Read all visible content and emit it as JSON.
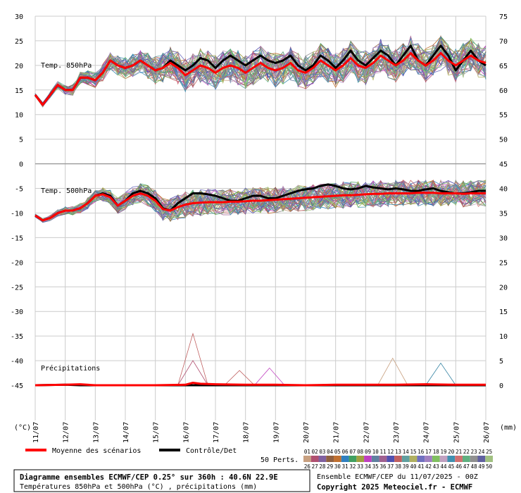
{
  "chart_data": {
    "type": "line",
    "title": "Diagramme ensembles ECMWF/CEP 0.25° sur 360h : 40.6N 22.9E",
    "subtitle": "Températures 850hPa et 500hPa (°C) , précipitations (mm)",
    "run_info": "Ensemble ECMWF/CEP du 11/07/2025 - 00Z",
    "copyright": "Copyright 2025 Meteociel.fr - ECMWF",
    "left_axis_unit": "(°C)",
    "right_axis_unit": "(mm)",
    "left_ticks": [
      "30",
      "25",
      "20",
      "15",
      "10",
      "5",
      "0",
      "-5",
      "-10",
      "-15",
      "-20",
      "-25",
      "-30",
      "-35",
      "-40",
      "-45"
    ],
    "right_ticks": [
      "75",
      "70",
      "65",
      "60",
      "55",
      "50",
      "45",
      "40",
      "35",
      "30",
      "25",
      "20",
      "15",
      "10",
      "5",
      "0"
    ],
    "x_labels": [
      "11/07",
      "12/07",
      "13/07",
      "14/07",
      "15/07",
      "16/07",
      "17/07",
      "18/07",
      "19/07",
      "20/07",
      "21/07",
      "22/07",
      "23/07",
      "24/07",
      "25/07",
      "26/07"
    ],
    "panel_labels": {
      "t850": "Temp. 850hPa",
      "t500": "Temp. 500hPa",
      "precip": "Précipitations"
    },
    "legend": {
      "mean": "Moyenne des scénarios",
      "control": "Contrôle/Det",
      "perts": "50 Perts."
    },
    "members_top": [
      "01",
      "02",
      "03",
      "04",
      "05",
      "06",
      "07",
      "08",
      "09",
      "10",
      "11",
      "12",
      "13",
      "14",
      "15",
      "16",
      "17",
      "18",
      "19",
      "20",
      "21",
      "22",
      "23",
      "24",
      "25"
    ],
    "members_bottom": [
      "26",
      "27",
      "28",
      "29",
      "30",
      "31",
      "32",
      "33",
      "34",
      "35",
      "36",
      "37",
      "38",
      "39",
      "40",
      "41",
      "42",
      "43",
      "44",
      "45",
      "46",
      "47",
      "48",
      "49",
      "50"
    ],
    "series": [
      {
        "name": "Contrôle/Det",
        "group": "t850",
        "color": "#000000",
        "x": [
          0,
          0.25,
          0.5,
          0.75,
          1,
          1.25,
          1.5,
          1.75,
          2,
          2.25,
          2.5,
          2.75,
          3,
          3.25,
          3.5,
          3.75,
          4,
          4.25,
          4.5,
          4.75,
          5,
          5.25,
          5.5,
          5.75,
          6,
          6.25,
          6.5,
          6.75,
          7,
          7.25,
          7.5,
          7.75,
          8,
          8.25,
          8.5,
          8.75,
          9,
          9.25,
          9.5,
          9.75,
          10,
          10.25,
          10.5,
          10.75,
          11,
          11.25,
          11.5,
          11.75,
          12,
          12.25,
          12.5,
          12.75,
          13,
          13.25,
          13.5,
          13.75,
          14,
          14.25,
          14.5,
          14.75,
          15
        ],
        "values": [
          14,
          12,
          14,
          16,
          15,
          15,
          17.5,
          17.5,
          17,
          18.5,
          21,
          20,
          19.5,
          20,
          21,
          20,
          19,
          19.5,
          21,
          20,
          19,
          20,
          21.5,
          21,
          19.5,
          21,
          22,
          21,
          20,
          21,
          22,
          21,
          20.5,
          21,
          22,
          20,
          19,
          20,
          22,
          21,
          19.5,
          21,
          23,
          21,
          20,
          21.5,
          23,
          22,
          20,
          22,
          24,
          21,
          20,
          22,
          24,
          22,
          19,
          21,
          23,
          21,
          20
        ]
      },
      {
        "name": "Moyenne des scénarios",
        "group": "t850",
        "color": "#ff0000",
        "x": [
          0,
          0.25,
          0.5,
          0.75,
          1,
          1.25,
          1.5,
          1.75,
          2,
          2.25,
          2.5,
          2.75,
          3,
          3.25,
          3.5,
          3.75,
          4,
          4.25,
          4.5,
          4.75,
          5,
          5.25,
          5.5,
          5.75,
          6,
          6.25,
          6.5,
          6.75,
          7,
          7.25,
          7.5,
          7.75,
          8,
          8.25,
          8.5,
          8.75,
          9,
          9.25,
          9.5,
          9.75,
          10,
          10.25,
          10.5,
          10.75,
          11,
          11.25,
          11.5,
          11.75,
          12,
          12.25,
          12.5,
          12.75,
          13,
          13.25,
          13.5,
          13.75,
          14,
          14.25,
          14.5,
          14.75,
          15
        ],
        "values": [
          14,
          12,
          14,
          16,
          15,
          15,
          17.5,
          17.5,
          17,
          18.5,
          21,
          20,
          19.5,
          20,
          21,
          20,
          19,
          19.5,
          20.5,
          19.5,
          18,
          19,
          20,
          19.5,
          18.5,
          19.5,
          20,
          19.5,
          18.5,
          19.5,
          20.5,
          19.5,
          19,
          19.5,
          20.5,
          19,
          18.5,
          19.5,
          21,
          20,
          19,
          20,
          21.5,
          20,
          19.5,
          20.5,
          22,
          21,
          20,
          21,
          22.5,
          21,
          20,
          21,
          22.5,
          21,
          20,
          21,
          22,
          21,
          20.5
        ]
      },
      {
        "name": "Contrôle/Det",
        "group": "t500",
        "color": "#000000",
        "x": [
          0,
          0.25,
          0.5,
          0.75,
          1,
          1.25,
          1.5,
          1.75,
          2,
          2.25,
          2.5,
          2.75,
          3,
          3.25,
          3.5,
          3.75,
          4,
          4.25,
          4.5,
          4.75,
          5,
          5.25,
          5.5,
          5.75,
          6,
          6.25,
          6.5,
          6.75,
          7,
          7.25,
          7.5,
          7.75,
          8,
          8.25,
          8.5,
          8.75,
          9,
          9.25,
          9.5,
          9.75,
          10,
          10.25,
          10.5,
          10.75,
          11,
          11.25,
          11.5,
          11.75,
          12,
          12.25,
          12.5,
          12.75,
          13,
          13.25,
          13.5,
          13.75,
          14,
          14.25,
          14.5,
          14.75,
          15
        ],
        "values": [
          -10.5,
          -11.5,
          -11,
          -10,
          -9.5,
          -9.5,
          -9,
          -8,
          -6.5,
          -6,
          -6.5,
          -8.5,
          -7.5,
          -6,
          -5.5,
          -6,
          -7,
          -9,
          -9.5,
          -8,
          -7,
          -6,
          -6,
          -6.2,
          -6.5,
          -7,
          -7.5,
          -7.5,
          -7,
          -6.5,
          -6.5,
          -7,
          -7,
          -6.5,
          -6,
          -5.5,
          -5.2,
          -5,
          -4.5,
          -4.2,
          -4.5,
          -5,
          -5.2,
          -5,
          -4.5,
          -4.8,
          -5,
          -5.2,
          -5,
          -5.2,
          -5.5,
          -5.5,
          -5.2,
          -5,
          -5.5,
          -5.8,
          -6,
          -6,
          -5.8,
          -5.5,
          -5.5
        ]
      },
      {
        "name": "Moyenne des scénarios",
        "group": "t500",
        "color": "#ff0000",
        "x": [
          0,
          0.25,
          0.5,
          0.75,
          1,
          1.25,
          1.5,
          1.75,
          2,
          2.25,
          2.5,
          2.75,
          3,
          3.25,
          3.5,
          3.75,
          4,
          4.25,
          4.5,
          4.75,
          5,
          5.25,
          5.5,
          5.75,
          6,
          6.25,
          6.5,
          6.75,
          7,
          7.25,
          7.5,
          7.75,
          8,
          8.25,
          8.5,
          8.75,
          9,
          9.25,
          9.5,
          9.75,
          10,
          10.25,
          10.5,
          10.75,
          11,
          11.25,
          11.5,
          11.75,
          12,
          12.25,
          12.5,
          12.75,
          13,
          13.25,
          13.5,
          13.75,
          14,
          14.25,
          14.5,
          14.75,
          15
        ],
        "values": [
          -10.5,
          -11.5,
          -11,
          -10,
          -9.5,
          -9.5,
          -9,
          -8,
          -6.5,
          -6.2,
          -6.8,
          -8.5,
          -7.5,
          -6.5,
          -6,
          -6.5,
          -7.5,
          -9.2,
          -9.5,
          -8.8,
          -8.3,
          -8,
          -7.9,
          -7.8,
          -7.8,
          -7.8,
          -7.7,
          -7.7,
          -7.6,
          -7.5,
          -7.5,
          -7.4,
          -7.3,
          -7.2,
          -7.1,
          -7,
          -6.9,
          -6.8,
          -6.7,
          -6.6,
          -6.5,
          -6.4,
          -6.4,
          -6.3,
          -6.2,
          -6.1,
          -6.1,
          -6,
          -6,
          -6,
          -6,
          -5.9,
          -5.9,
          -5.9,
          -6,
          -6,
          -6,
          -6.1,
          -6,
          -6,
          -6
        ]
      },
      {
        "name": "Contrôle/Det",
        "group": "precip",
        "color": "#000000",
        "x": [
          0,
          1,
          1.5,
          2,
          3,
          4,
          5,
          6,
          7,
          8,
          9,
          10,
          11,
          12,
          13,
          14,
          15
        ],
        "values": [
          0,
          0.1,
          0,
          0,
          0,
          0,
          0,
          0,
          0,
          0,
          0,
          0,
          0,
          0,
          0,
          0,
          0
        ]
      },
      {
        "name": "Moyenne des scénarios",
        "group": "precip",
        "color": "#ff0000",
        "x": [
          0,
          1,
          1.5,
          2,
          3,
          4,
          5,
          5.25,
          5.5,
          6,
          7,
          8,
          9,
          10,
          11,
          12,
          13,
          14,
          15
        ],
        "values": [
          0,
          0.1,
          0.2,
          0,
          0,
          0,
          0.1,
          0.5,
          0.3,
          0.2,
          0.1,
          0.1,
          0,
          0.1,
          0.1,
          0.1,
          0.2,
          0.1,
          0.1
        ]
      }
    ]
  }
}
